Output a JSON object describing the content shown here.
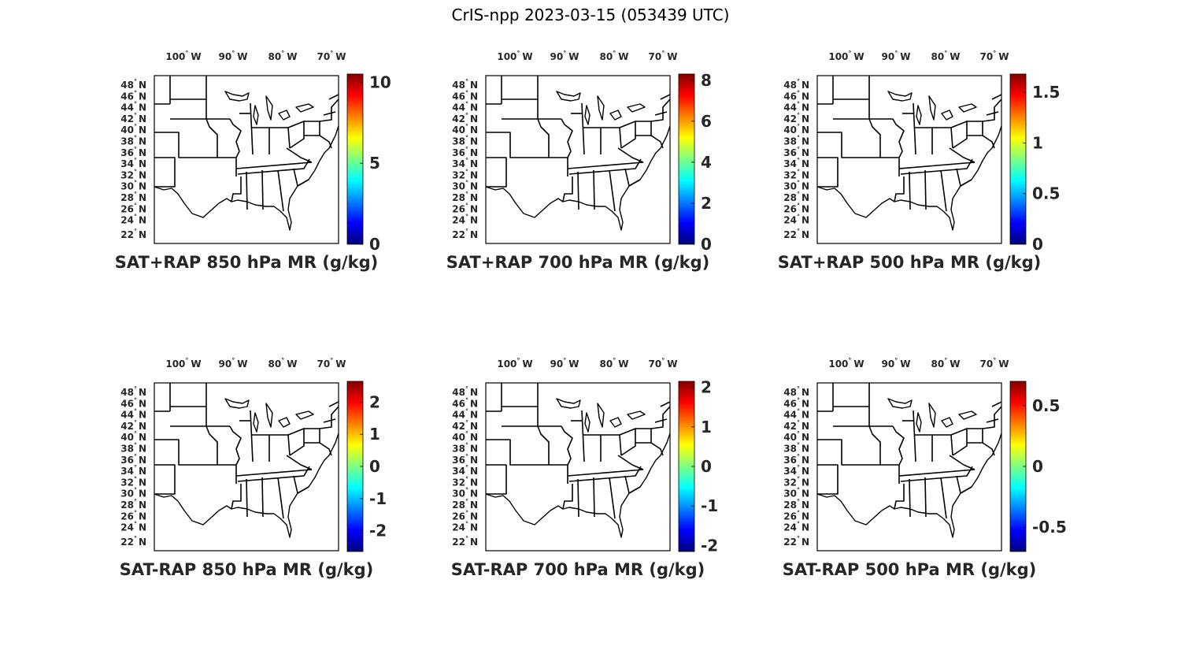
{
  "figure": {
    "title": "CrIS-npp 2023-03-15 (053439 UTC)"
  },
  "colormap": "jet",
  "lon_ticks": [
    {
      "deg": "100",
      "hemi": "W"
    },
    {
      "deg": "90",
      "hemi": "W"
    },
    {
      "deg": "80",
      "hemi": "W"
    },
    {
      "deg": "70",
      "hemi": "W"
    }
  ],
  "lat_ticks": [
    {
      "deg": "48",
      "hemi": "N"
    },
    {
      "deg": "46",
      "hemi": "N"
    },
    {
      "deg": "44",
      "hemi": "N"
    },
    {
      "deg": "42",
      "hemi": "N"
    },
    {
      "deg": "40",
      "hemi": "N"
    },
    {
      "deg": "38",
      "hemi": "N"
    },
    {
      "deg": "36",
      "hemi": "N"
    },
    {
      "deg": "34",
      "hemi": "N"
    },
    {
      "deg": "32",
      "hemi": "N"
    },
    {
      "deg": "30",
      "hemi": "N"
    },
    {
      "deg": "28",
      "hemi": "N"
    },
    {
      "deg": "26",
      "hemi": "N"
    },
    {
      "deg": "24",
      "hemi": "N"
    },
    {
      "deg": "22",
      "hemi": "N"
    }
  ],
  "panels": [
    {
      "title": "SAT+RAP 850 hPa MR (g/kg)",
      "cmin": 0,
      "cmax": 10.5,
      "ticks": [
        {
          "v": 0,
          "label": "0"
        },
        {
          "v": 5,
          "label": "5"
        },
        {
          "v": 10,
          "label": "10"
        }
      ]
    },
    {
      "title": "SAT+RAP 700 hPa MR (g/kg)",
      "cmin": 0,
      "cmax": 8.3,
      "ticks": [
        {
          "v": 0,
          "label": "0"
        },
        {
          "v": 2,
          "label": "2"
        },
        {
          "v": 4,
          "label": "4"
        },
        {
          "v": 6,
          "label": "6"
        },
        {
          "v": 8,
          "label": "8"
        }
      ]
    },
    {
      "title": "SAT+RAP 500 hPa MR (g/kg)",
      "cmin": 0,
      "cmax": 1.68,
      "ticks": [
        {
          "v": 0,
          "label": "0"
        },
        {
          "v": 0.5,
          "label": "0.5"
        },
        {
          "v": 1,
          "label": "1"
        },
        {
          "v": 1.5,
          "label": "1.5"
        }
      ]
    },
    {
      "title": "SAT-RAP 850 hPa MR (g/kg)",
      "cmin": -2.65,
      "cmax": 2.65,
      "ticks": [
        {
          "v": -2,
          "label": "-2"
        },
        {
          "v": -1,
          "label": "-1"
        },
        {
          "v": 0,
          "label": "0"
        },
        {
          "v": 1,
          "label": "1"
        },
        {
          "v": 2,
          "label": "2"
        }
      ]
    },
    {
      "title": "SAT-RAP 700 hPa MR (g/kg)",
      "cmin": -2.15,
      "cmax": 2.15,
      "ticks": [
        {
          "v": -2,
          "label": "-2"
        },
        {
          "v": -1,
          "label": "-1"
        },
        {
          "v": 0,
          "label": "0"
        },
        {
          "v": 1,
          "label": "1"
        },
        {
          "v": 2,
          "label": "2"
        }
      ]
    },
    {
      "title": "SAT-RAP 500 hPa MR (g/kg)",
      "cmin": -0.7,
      "cmax": 0.7,
      "ticks": [
        {
          "v": -0.5,
          "label": "-0.5"
        },
        {
          "v": 0,
          "label": "0"
        },
        {
          "v": 0.5,
          "label": "0.5"
        }
      ]
    }
  ]
}
